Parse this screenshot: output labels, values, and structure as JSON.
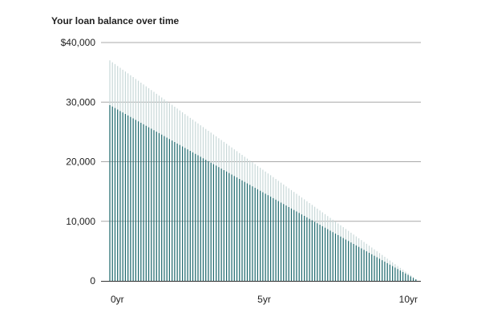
{
  "chart_data": {
    "type": "bar",
    "title": "Your loan balance over time",
    "xlabel": "",
    "ylabel": "",
    "x_unit": "yr",
    "xlim": [
      0,
      10
    ],
    "ylim": [
      0,
      40000
    ],
    "y_ticks": [
      {
        "value": 0,
        "label": "0"
      },
      {
        "value": 10000,
        "label": "10,000"
      },
      {
        "value": 20000,
        "label": "20,000"
      },
      {
        "value": 30000,
        "label": "30,000"
      },
      {
        "value": 40000,
        "label": "$40,000"
      }
    ],
    "x_ticks": [
      {
        "value": 0,
        "label": "0yr"
      },
      {
        "value": 5,
        "label": "5yr"
      },
      {
        "value": 10,
        "label": "10yr"
      }
    ],
    "grid": true,
    "bar_count": 120,
    "series": [
      {
        "name": "",
        "color": "#c8d8d8",
        "start_value": 37000,
        "end_value": 0
      },
      {
        "name": "",
        "color": "#1f6a6f",
        "start_value": 29500,
        "end_value": 0
      }
    ]
  }
}
